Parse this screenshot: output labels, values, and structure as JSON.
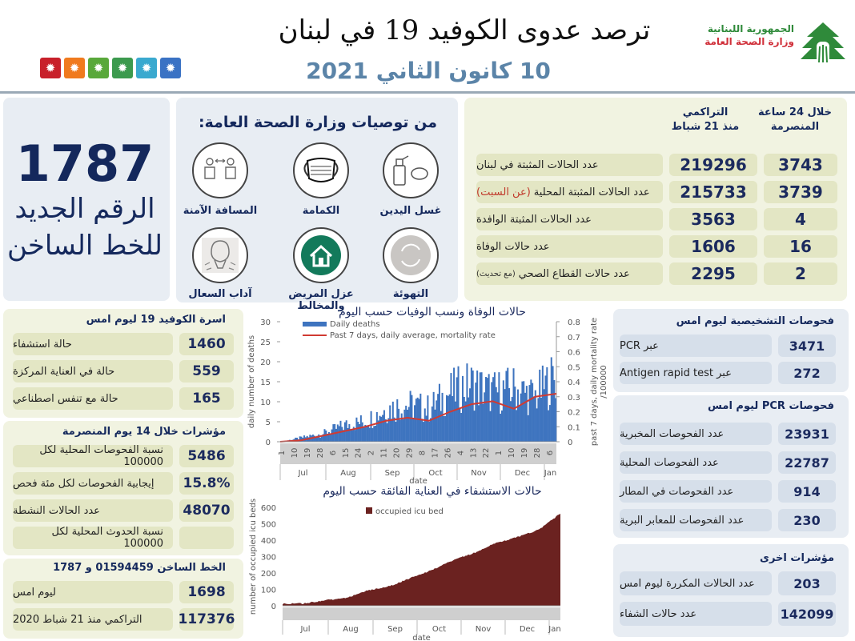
{
  "header": {
    "title": "ترصد عدوى الكوفيد 19 في لبنان",
    "date": "10 كانون الثاني 2021",
    "ministry_line1": "الجمهورية اللبنانية",
    "ministry_line2": "وزارة الصحة العامة",
    "color_squares": [
      "#c8202a",
      "#f07a1e",
      "#59a83a",
      "#3c9a4e",
      "#3aa9cf",
      "#3a72c4"
    ]
  },
  "hotline_box": {
    "number": "1787",
    "text_line1": "الرقم الجديد",
    "text_line2": "للخط الساخن"
  },
  "recommendations": {
    "title": "من توصيات وزارة الصحة العامة:",
    "items": [
      {
        "label": "غسل اليدين",
        "icon": "hand-sanitizer-icon"
      },
      {
        "label": "الكمامة",
        "icon": "face-mask-icon"
      },
      {
        "label": "المسافة الآمنة",
        "icon": "social-distance-icon"
      },
      {
        "label": "التهوئة",
        "icon": "ventilation-icon"
      },
      {
        "label": "عزل المريض والمخالط",
        "icon": "home-isolation-icon"
      },
      {
        "label": "آداب السعال",
        "icon": "cough-etiquette-icon"
      }
    ]
  },
  "summary_table": {
    "col_24h": "خلال 24 ساعة المنصرمة",
    "col_24h_line1": "خلال 24 ساعة",
    "col_24h_line2": "المنصرمة",
    "col_cum_line1": "التراكمي",
    "col_cum_line2": "منذ 21 شباط",
    "rows": [
      {
        "label": "عدد الحالات المثبتة في لبنان",
        "note": "",
        "cumulative": "219296",
        "last24h": "3743"
      },
      {
        "label": "عدد الحالات المثبتة المحلية",
        "note": "(عن السبت)",
        "cumulative": "215733",
        "last24h": "3739"
      },
      {
        "label": "عدد الحالات المثبتة الوافدة",
        "note": "",
        "cumulative": "3563",
        "last24h": "4"
      },
      {
        "label": "عدد حالات الوفاة",
        "note": "",
        "cumulative": "1606",
        "last24h": "16"
      },
      {
        "label": "عدد حالات القطاع الصحي",
        "note": "(مع تحديث)",
        "cumulative": "2295",
        "last24h": "2"
      }
    ]
  },
  "covid_beds": {
    "title": "اسرة الكوفيد 19 ليوم امس",
    "rows": [
      {
        "label": "حالة استشفاء",
        "value": "1460"
      },
      {
        "label": "حالة في العناية المركزة",
        "value": "559"
      },
      {
        "label": "حالة مع تنفس اصطناعي",
        "value": "165"
      }
    ]
  },
  "indicators_14d": {
    "title": "مؤشرات خلال 14 يوم المنصرمة",
    "rows": [
      {
        "label": "نسبة الفحوصات المحلية لكل 100000",
        "value": "5486"
      },
      {
        "label": "إيجابية الفحوصات لكل مئة فحص",
        "value": "15.8%"
      },
      {
        "label": "عدد الحالات النشطة",
        "value": "48070"
      },
      {
        "label": "نسبة الحدوث المحلية لكل 100000",
        "value": ""
      }
    ]
  },
  "hotline_stats": {
    "title": "الخط الساخن 01594459 و 1787",
    "rows": [
      {
        "label": "ليوم امس",
        "value": "1698"
      },
      {
        "label": "التراكمي منذ 21 شباط 2020",
        "value": "117376"
      }
    ]
  },
  "diagnostic_tests": {
    "title": "فحوصات التشخيصية ليوم امس",
    "rows": [
      {
        "label": "عبر PCR",
        "value": "3471"
      },
      {
        "label": "عبر Antigen rapid test",
        "value": "272"
      }
    ]
  },
  "pcr_tests": {
    "title": "فحوصات PCR ليوم امس",
    "rows": [
      {
        "label": "عدد الفحوصات المخبرية",
        "value": "23931"
      },
      {
        "label": "عدد الفحوصات المحلية",
        "value": "22787"
      },
      {
        "label": "عدد الفحوصات في المطار",
        "value": "914"
      },
      {
        "label": "عدد الفحوصات للمعابر البرية",
        "value": "230"
      }
    ]
  },
  "other_indicators": {
    "title": "مؤشرات اخرى",
    "rows": [
      {
        "label": "عدد الحالات المكررة ليوم امس",
        "value": "203"
      },
      {
        "label": "عدد حالات الشفاء",
        "value": "142099"
      }
    ]
  },
  "chart_data": [
    {
      "type": "bar",
      "title": "حالات الوفاة ونسب الوفيات حسب اليوم",
      "xlabel": "date",
      "ylabel": "daily number of deaths",
      "y2label": "past 7 days, daily mortality rate /100000",
      "ylim": [
        0,
        30
      ],
      "y2lim": [
        0,
        0.8
      ],
      "yticks": [
        0,
        5,
        10,
        15,
        20,
        25,
        30
      ],
      "y2ticks": [
        0,
        0.1,
        0.2,
        0.3,
        0.4,
        0.5,
        0.6,
        0.7,
        0.8
      ],
      "months": [
        "Jul",
        "Aug",
        "Sep",
        "Oct",
        "Nov",
        "Dec",
        "Jan"
      ],
      "xtick_days": [
        "1",
        "10",
        "19",
        "28",
        "6",
        "15",
        "24",
        "2",
        "11",
        "20",
        "29",
        "8",
        "17",
        "26",
        "4",
        "13",
        "22",
        "1",
        "10",
        "19",
        "28",
        "6"
      ],
      "legend": [
        "Daily deaths",
        "Past 7 days, daily average, mortality rate"
      ],
      "series": [
        {
          "name": "Daily deaths",
          "type": "bar",
          "color": "#3e74bf",
          "x": [
            "Jul-01",
            "Jul-15",
            "Aug-01",
            "Aug-15",
            "Sep-01",
            "Sep-15",
            "Oct-01",
            "Oct-15",
            "Nov-01",
            "Nov-15",
            "Dec-01",
            "Dec-15",
            "Jan-01",
            "Jan-09"
          ],
          "values": [
            0,
            1,
            2,
            4,
            5,
            8,
            9,
            8,
            12,
            14,
            12,
            13,
            11,
            16
          ]
        },
        {
          "name": "Past 7 days, daily average, mortality rate",
          "type": "line",
          "color": "#d03a32",
          "x": [
            "Jul-01",
            "Jul-15",
            "Aug-01",
            "Aug-15",
            "Sep-01",
            "Sep-15",
            "Oct-01",
            "Oct-15",
            "Nov-01",
            "Nov-15",
            "Dec-01",
            "Dec-15",
            "Jan-01",
            "Jan-09"
          ],
          "values": [
            0.0,
            0.01,
            0.04,
            0.07,
            0.1,
            0.14,
            0.16,
            0.14,
            0.2,
            0.25,
            0.27,
            0.22,
            0.3,
            0.32
          ]
        }
      ]
    },
    {
      "type": "area",
      "title": "حالات الاستشفاء في العناية الفائقة حسب اليوم",
      "xlabel": "date",
      "ylabel": "number of occupied icu beds",
      "ylim": [
        0,
        600
      ],
      "yticks": [
        0,
        100,
        200,
        300,
        400,
        500,
        600
      ],
      "months": [
        "Jul",
        "Aug",
        "Sep",
        "Oct",
        "Nov",
        "Dec",
        "Jan"
      ],
      "legend": [
        "occupied icu bed"
      ],
      "series": [
        {
          "name": "occupied icu bed",
          "color": "#6b2220",
          "x": [
            "Jul-01",
            "Jul-15",
            "Aug-01",
            "Aug-15",
            "Sep-01",
            "Sep-15",
            "Oct-01",
            "Oct-15",
            "Nov-01",
            "Nov-15",
            "Dec-01",
            "Dec-15",
            "Jan-01",
            "Jan-09"
          ],
          "values": [
            8,
            10,
            30,
            45,
            90,
            115,
            165,
            215,
            275,
            320,
            380,
            415,
            460,
            559
          ]
        }
      ]
    }
  ]
}
